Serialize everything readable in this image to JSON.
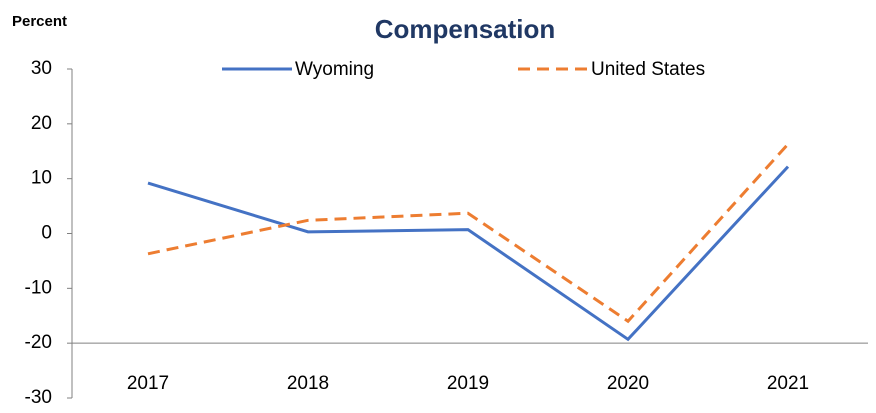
{
  "chart_data": {
    "type": "line",
    "title": "Compensation",
    "y_label": "Percent",
    "categories": [
      "2017",
      "2018",
      "2019",
      "2020",
      "2021"
    ],
    "series": [
      {
        "name": "Wyoming",
        "color": "#4472c4",
        "dash": "solid",
        "values": [
          9.2,
          0.3,
          0.7,
          -19.3,
          12.2
        ]
      },
      {
        "name": "United States",
        "color": "#ed7d31",
        "dash": "dashed",
        "values": [
          -3.7,
          2.4,
          3.7,
          -16,
          16.3
        ]
      }
    ],
    "ylim": [
      -30,
      30
    ],
    "yticks": [
      -30,
      -20,
      -10,
      0,
      10,
      20,
      30
    ],
    "x_axis_crossing": -20,
    "grid": false,
    "legend": "top"
  }
}
